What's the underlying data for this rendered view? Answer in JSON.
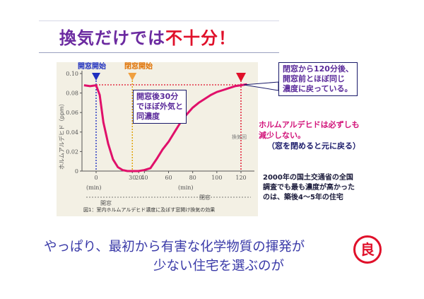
{
  "title": {
    "main": "換気だけでは",
    "emphasis": "不十分！"
  },
  "chart_data": {
    "type": "line",
    "ylabel": "ホルムアルデヒド（ppm）",
    "xlabel": "(min)",
    "ylim": [
      0,
      0.1
    ],
    "yticks": [
      "0",
      "0.02",
      "0.04",
      "0.06",
      "0.08",
      "0.10"
    ],
    "xlim": [
      -10,
      130
    ],
    "xticks": [
      "0",
      "30",
      "20",
      "40",
      "60",
      "80",
      "100",
      "120"
    ],
    "xtick_values": [
      0,
      30,
      20,
      40,
      60,
      80,
      100,
      120
    ],
    "x": [
      -10,
      -5,
      0,
      3,
      6,
      10,
      14,
      18,
      22,
      26,
      30,
      35,
      40,
      45,
      50,
      55,
      60,
      65,
      70,
      75,
      80,
      85,
      90,
      95,
      100,
      105,
      110,
      115,
      120,
      125
    ],
    "y": [
      0.088,
      0.087,
      0.088,
      0.078,
      0.05,
      0.028,
      0.012,
      0.004,
      0.001,
      0.0,
      0.0,
      0.0,
      0.001,
      0.003,
      0.012,
      0.022,
      0.03,
      0.04,
      0.05,
      0.058,
      0.065,
      0.07,
      0.074,
      0.078,
      0.081,
      0.083,
      0.085,
      0.087,
      0.088,
      0.089
    ],
    "series_color": "#e0106a",
    "segments": {
      "closed": "閉窓",
      "open": "開窓"
    },
    "caption": "図1：室内ホルムアルデヒド濃度に及ぼす窓開け換気の効果"
  },
  "markers": {
    "open_start": "開窓開始",
    "close_start": "閉窓開始",
    "stray_mark": "換気回"
  },
  "notes": {
    "after30": [
      "開窓後30分",
      "でほぼ外気と",
      "同濃度"
    ],
    "after120": [
      "閉窓から120分後、",
      "開窓前とほぼ同じ",
      "濃度に戻っている。"
    ],
    "formaldehyde": [
      "ホルムアルデヒドは必ずしも",
      "減少しない。"
    ],
    "formaldehyde_paren": "（窓を閉めると元に戻る）",
    "survey": [
      "2000年の国土交通省の全国",
      "調査でも最も濃度が高かった",
      "のは、築後4～5年の住宅"
    ]
  },
  "bottom": {
    "line1": "やっぱり、最初から有害な化学物質の揮発が",
    "line2": "少ない住宅を選ぶのが",
    "badge": "良"
  },
  "colors": {
    "accent_red": "#e0102a",
    "purple": "#6b2aa0",
    "blue_text": "#3a3aa8"
  }
}
